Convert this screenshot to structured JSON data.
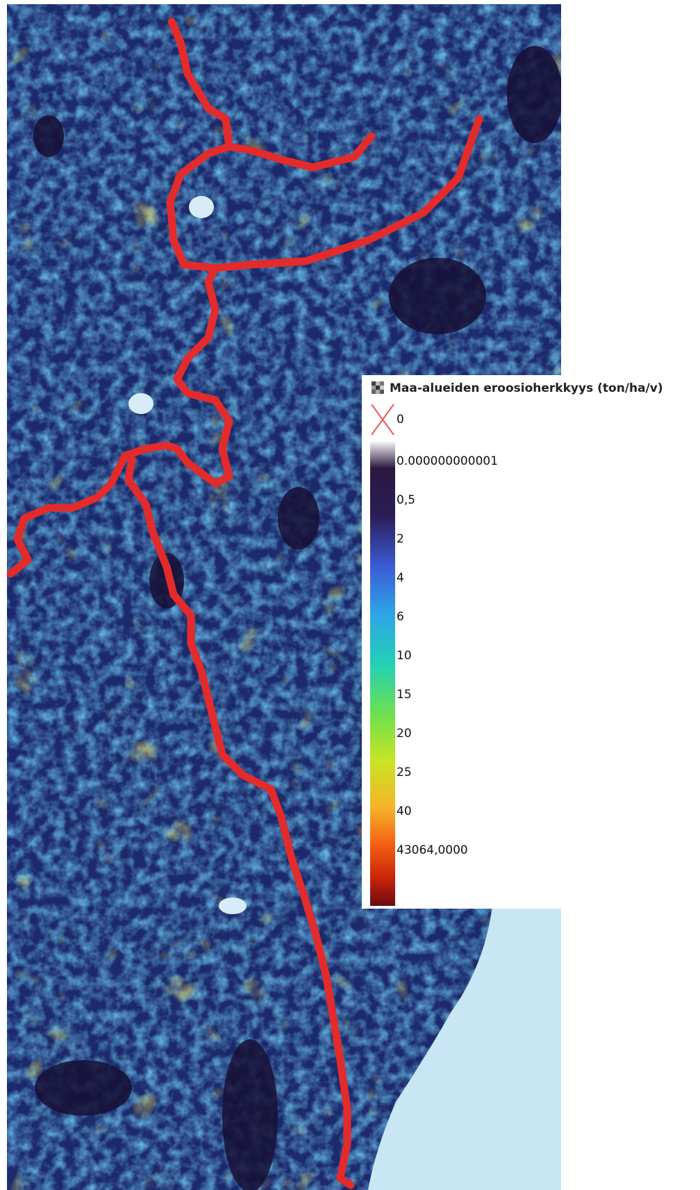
{
  "map": {
    "route_color": "#e32b2b",
    "water_color": "#c9e6f4",
    "background_color": "#1c2a6b"
  },
  "legend": {
    "title": "Maa-alueiden eroosioherkkyys (ton/ha/v)",
    "layer_icon": "raster-layer-icon",
    "nodata_icon": "red-x-icon",
    "nodata_label": "0",
    "classes": [
      {
        "label": "0.000000000001",
        "color": "#2a1840"
      },
      {
        "label": "0,5",
        "color": "#2b1d55"
      },
      {
        "label": "2",
        "color": "#3a5bd4"
      },
      {
        "label": "4",
        "color": "#2fa3e8"
      },
      {
        "label": "6",
        "color": "#22d1b5"
      },
      {
        "label": "10",
        "color": "#6fe04e"
      },
      {
        "label": "15",
        "color": "#c9e424"
      },
      {
        "label": "20",
        "color": "#f6b22a"
      },
      {
        "label": "25",
        "color": "#f25e12"
      },
      {
        "label": "40",
        "color": "#c9240a"
      },
      {
        "label": "43064,0000",
        "color": "#6a0a10"
      }
    ]
  }
}
